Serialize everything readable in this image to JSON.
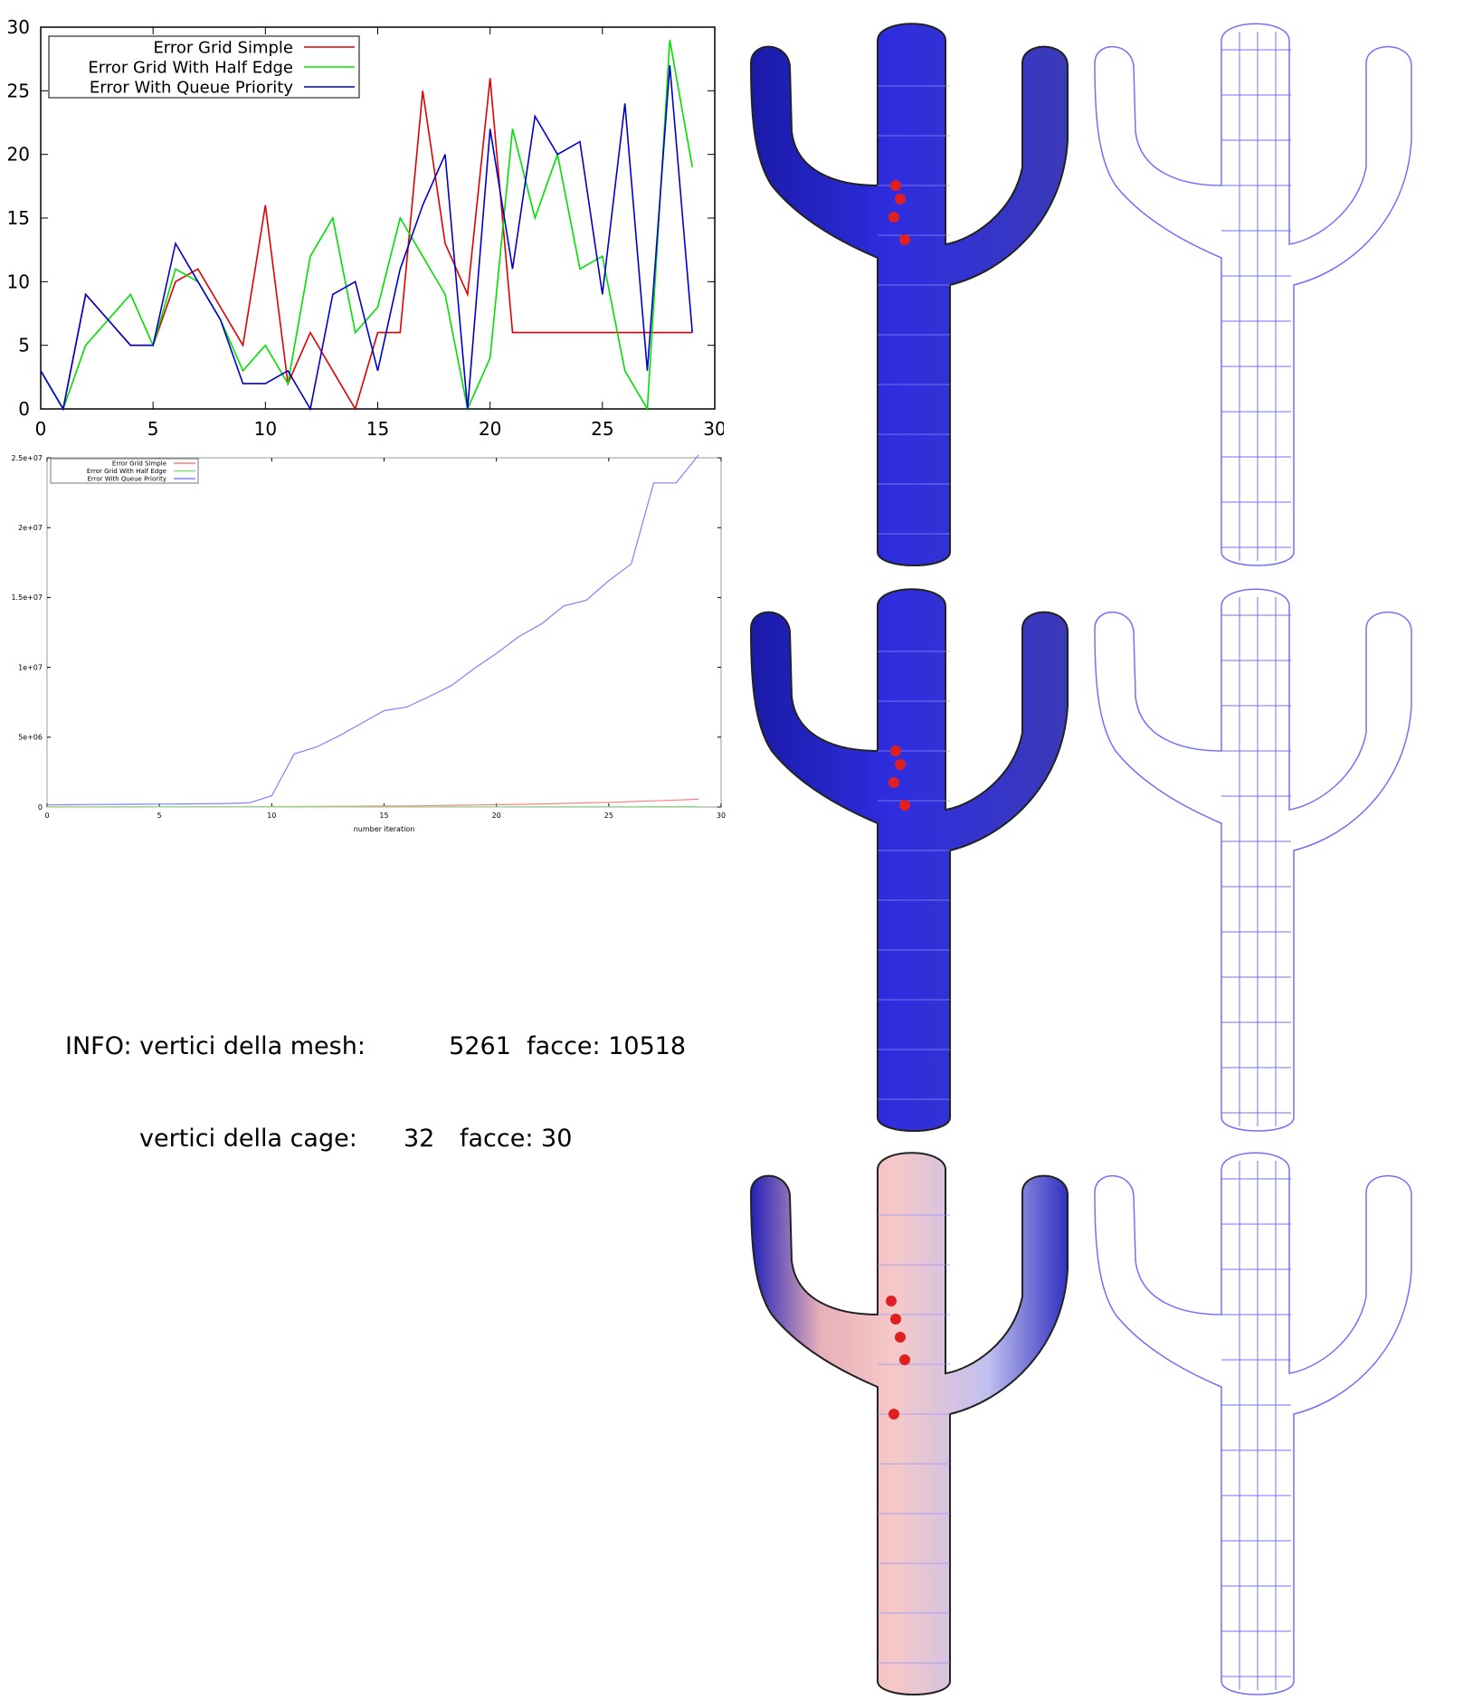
{
  "chart_data": [
    {
      "type": "line",
      "title": "",
      "xlabel": "",
      "ylabel": "",
      "xlim": [
        0,
        30
      ],
      "ylim": [
        0,
        30
      ],
      "x_ticks": [
        0,
        5,
        10,
        15,
        20,
        25,
        30
      ],
      "y_ticks": [
        0,
        5,
        10,
        15,
        20,
        25,
        30
      ],
      "x_tick_labels": [
        "0",
        "5",
        "10",
        "15",
        "20",
        "25",
        "30"
      ],
      "y_tick_labels": [
        "0",
        "5",
        "10",
        "15",
        "20",
        "25",
        "30"
      ],
      "legend_position": "top-left",
      "grid": false,
      "x": [
        0,
        1,
        2,
        3,
        4,
        5,
        6,
        7,
        8,
        9,
        10,
        11,
        12,
        13,
        14,
        15,
        16,
        17,
        18,
        19,
        20,
        21,
        22,
        23,
        24,
        25,
        26,
        27,
        28,
        29
      ],
      "series": [
        {
          "name": "Error Grid Simple",
          "color": "#e00000",
          "values": [
            3,
            0,
            9,
            7,
            5,
            5,
            10,
            11,
            8,
            5,
            16,
            2,
            6,
            3,
            0,
            6,
            6,
            25,
            13,
            9,
            26,
            6,
            6,
            6,
            6,
            6,
            6,
            6,
            6,
            6
          ]
        },
        {
          "name": "Error Grid With Half Edge",
          "color": "#00e000",
          "values": [
            3,
            0,
            5,
            7,
            9,
            5,
            11,
            10,
            7,
            3,
            5,
            2,
            12,
            15,
            6,
            8,
            15,
            12,
            9,
            0,
            4,
            22,
            15,
            20,
            11,
            12,
            3,
            0,
            29,
            19
          ]
        },
        {
          "name": "Error With Queue Priority",
          "color": "#0000cc",
          "values": [
            3,
            0,
            9,
            7,
            5,
            5,
            13,
            10,
            7,
            2,
            2,
            3,
            0,
            9,
            10,
            3,
            11,
            16,
            20,
            0,
            22,
            11,
            23,
            20,
            21,
            9,
            24,
            3,
            27,
            6
          ]
        }
      ]
    },
    {
      "type": "line",
      "title": "",
      "xlabel": "number iteration",
      "ylabel": "",
      "xlim": [
        0,
        30
      ],
      "ylim": [
        0,
        25000000
      ],
      "x_ticks": [
        0,
        5,
        10,
        15,
        20,
        25,
        30
      ],
      "y_ticks": [
        0,
        5000000,
        10000000,
        15000000,
        20000000,
        25000000
      ],
      "x_tick_labels": [
        "0",
        "5",
        "10",
        "15",
        "20",
        "25",
        "30"
      ],
      "y_tick_labels": [
        "0",
        "5e+06",
        "1e+07",
        "1.5e+07",
        "2e+07",
        "2.5e+07"
      ],
      "legend_position": "top-left",
      "grid": false,
      "x": [
        0,
        1,
        2,
        3,
        4,
        5,
        6,
        7,
        8,
        9,
        10,
        11,
        12,
        13,
        14,
        15,
        16,
        17,
        18,
        19,
        20,
        21,
        22,
        23,
        24,
        25,
        26,
        27,
        28,
        29
      ],
      "series": [
        {
          "name": "Error Grid Simple",
          "color": "#ff8080",
          "values": [
            5000,
            6000,
            8000,
            10000,
            12000,
            15000,
            18000,
            20000,
            22000,
            25000,
            30000,
            35000,
            40000,
            50000,
            60000,
            70000,
            80000,
            100000,
            120000,
            140000,
            160000,
            190000,
            220000,
            260000,
            300000,
            340000,
            390000,
            440000,
            500000,
            560000
          ]
        },
        {
          "name": "Error Grid With Half Edge",
          "color": "#80e080",
          "values": [
            1000,
            1500,
            2000,
            2500,
            3000,
            3500,
            4000,
            4500,
            5000,
            5500,
            6000,
            7000,
            8000,
            9000,
            10000,
            11000,
            12000,
            13000,
            14000,
            15000,
            16000,
            17000,
            18000,
            19000,
            20000,
            21000,
            22000,
            23000,
            24000,
            25000
          ]
        },
        {
          "name": "Error With Queue Priority",
          "color": "#8080ff",
          "values": [
            150000,
            160000,
            180000,
            190000,
            200000,
            210000,
            220000,
            230000,
            250000,
            300000,
            800000,
            3800000,
            4300000,
            5100000,
            6000000,
            6900000,
            7150000,
            7900000,
            8700000,
            9900000,
            11000000,
            12200000,
            13100000,
            14400000,
            14800000,
            16200000,
            17400000,
            23200000,
            23200000,
            25200000
          ]
        }
      ]
    }
  ],
  "info": {
    "prefix": "INFO:",
    "mesh_label": "vertici della mesh:",
    "mesh_vertices": "5261",
    "mesh_faces_label": "facce:",
    "mesh_faces": "10518",
    "cage_label": "vertici della cage:",
    "cage_vertices": "32",
    "cage_faces_label": "facce:",
    "cage_faces": "30"
  },
  "renders": {
    "mesh_color": "#2b2bd6",
    "error_color": "#e02020",
    "cage_color": "#7070ff"
  }
}
